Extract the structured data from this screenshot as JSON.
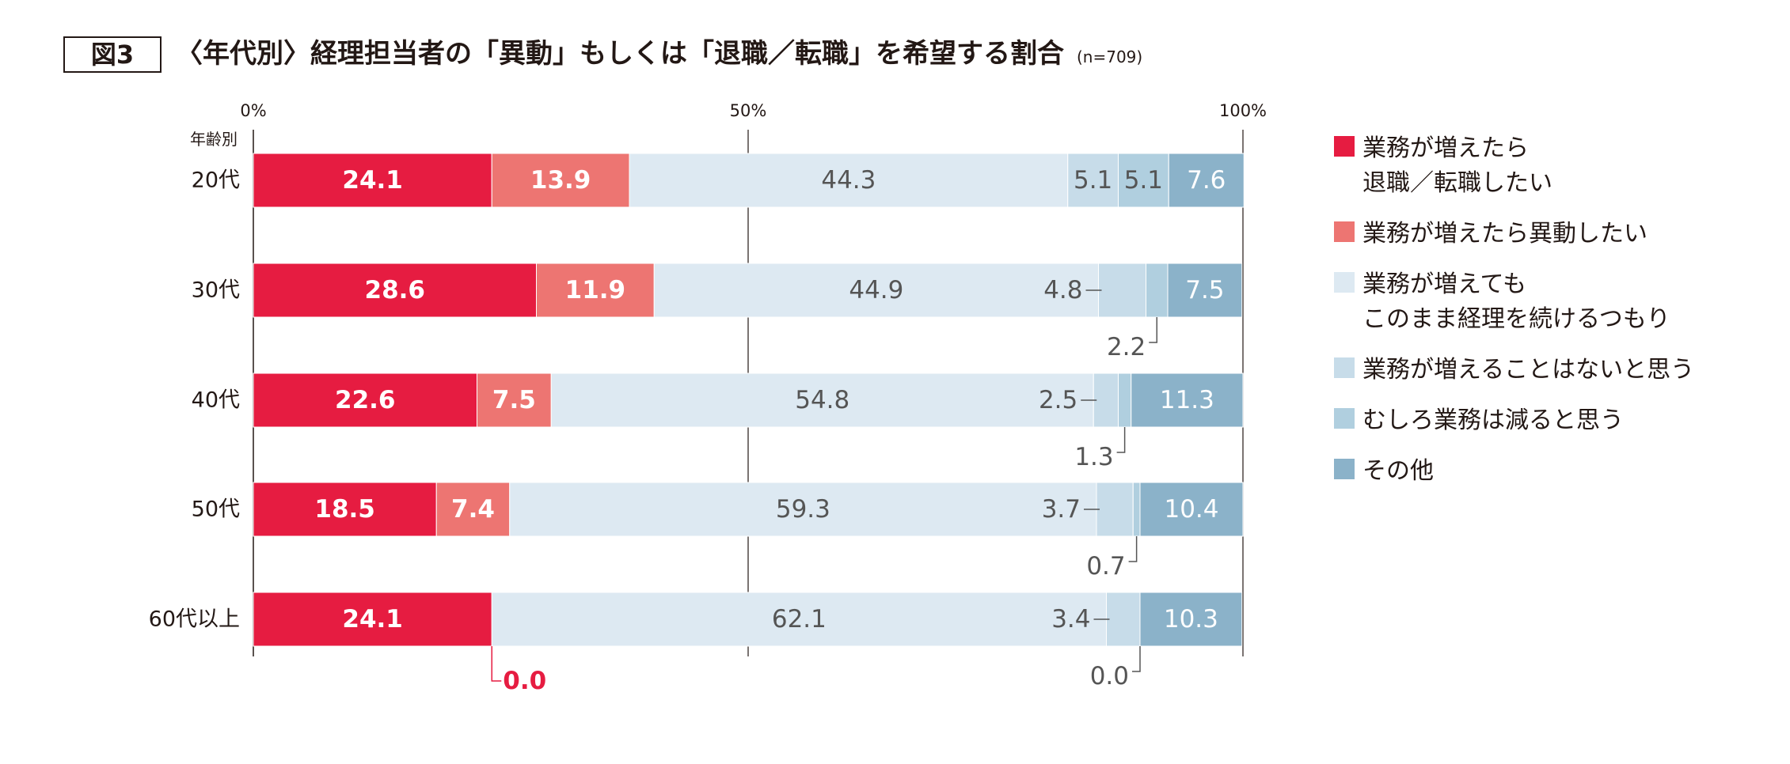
{
  "figure_label": "図3",
  "title": "〈年代別〉経理担当者の「異動」もしくは「退職／転職」を希望する割合",
  "sample_note": "(n=709)",
  "chart_data": {
    "type": "bar",
    "orientation": "horizontal",
    "stacked": true,
    "categories": [
      "20代",
      "30代",
      "40代",
      "50代",
      "60代以上"
    ],
    "category_axis_label": "年齢別",
    "xlim": [
      0,
      100
    ],
    "x_ticks": [
      "0%",
      "50%",
      "100%"
    ],
    "series": [
      {
        "name": "業務が増えたら\n退職／転職したい",
        "color": "#e61c41",
        "values": [
          24.1,
          28.6,
          22.6,
          18.5,
          24.1
        ]
      },
      {
        "name": "業務が増えたら異動したい",
        "color": "#ed7572",
        "values": [
          13.9,
          11.9,
          7.5,
          7.4,
          0.0
        ]
      },
      {
        "name": "業務が増えても\nこのまま経理を続けるつもり",
        "color": "#dde9f2",
        "values": [
          44.3,
          44.9,
          54.8,
          59.3,
          62.1
        ]
      },
      {
        "name": "業務が増えることはないと思う",
        "color": "#c7dce9",
        "values": [
          5.1,
          4.8,
          2.5,
          3.7,
          3.4
        ]
      },
      {
        "name": "むしろ業務は減ると思う",
        "color": "#b0cfdf",
        "values": [
          5.1,
          2.2,
          1.3,
          0.7,
          0.0
        ]
      },
      {
        "name": "その他",
        "color": "#8bb2c9",
        "values": [
          7.6,
          7.5,
          11.3,
          10.4,
          10.3
        ]
      }
    ],
    "labels": [
      [
        "24.1",
        "13.9",
        "44.3",
        "5.1",
        "5.1",
        "7.6"
      ],
      [
        "28.6",
        "11.9",
        "44.9",
        "4.8",
        "2.2",
        "7.5"
      ],
      [
        "22.6",
        "7.5",
        "54.8",
        "2.5",
        "1.3",
        "11.3"
      ],
      [
        "18.5",
        "7.4",
        "59.3",
        "3.7",
        "0.7",
        "10.4"
      ],
      [
        "24.1",
        "0.0",
        "62.1",
        "3.4",
        "0.0",
        "10.3"
      ]
    ],
    "legend_position": "right"
  }
}
